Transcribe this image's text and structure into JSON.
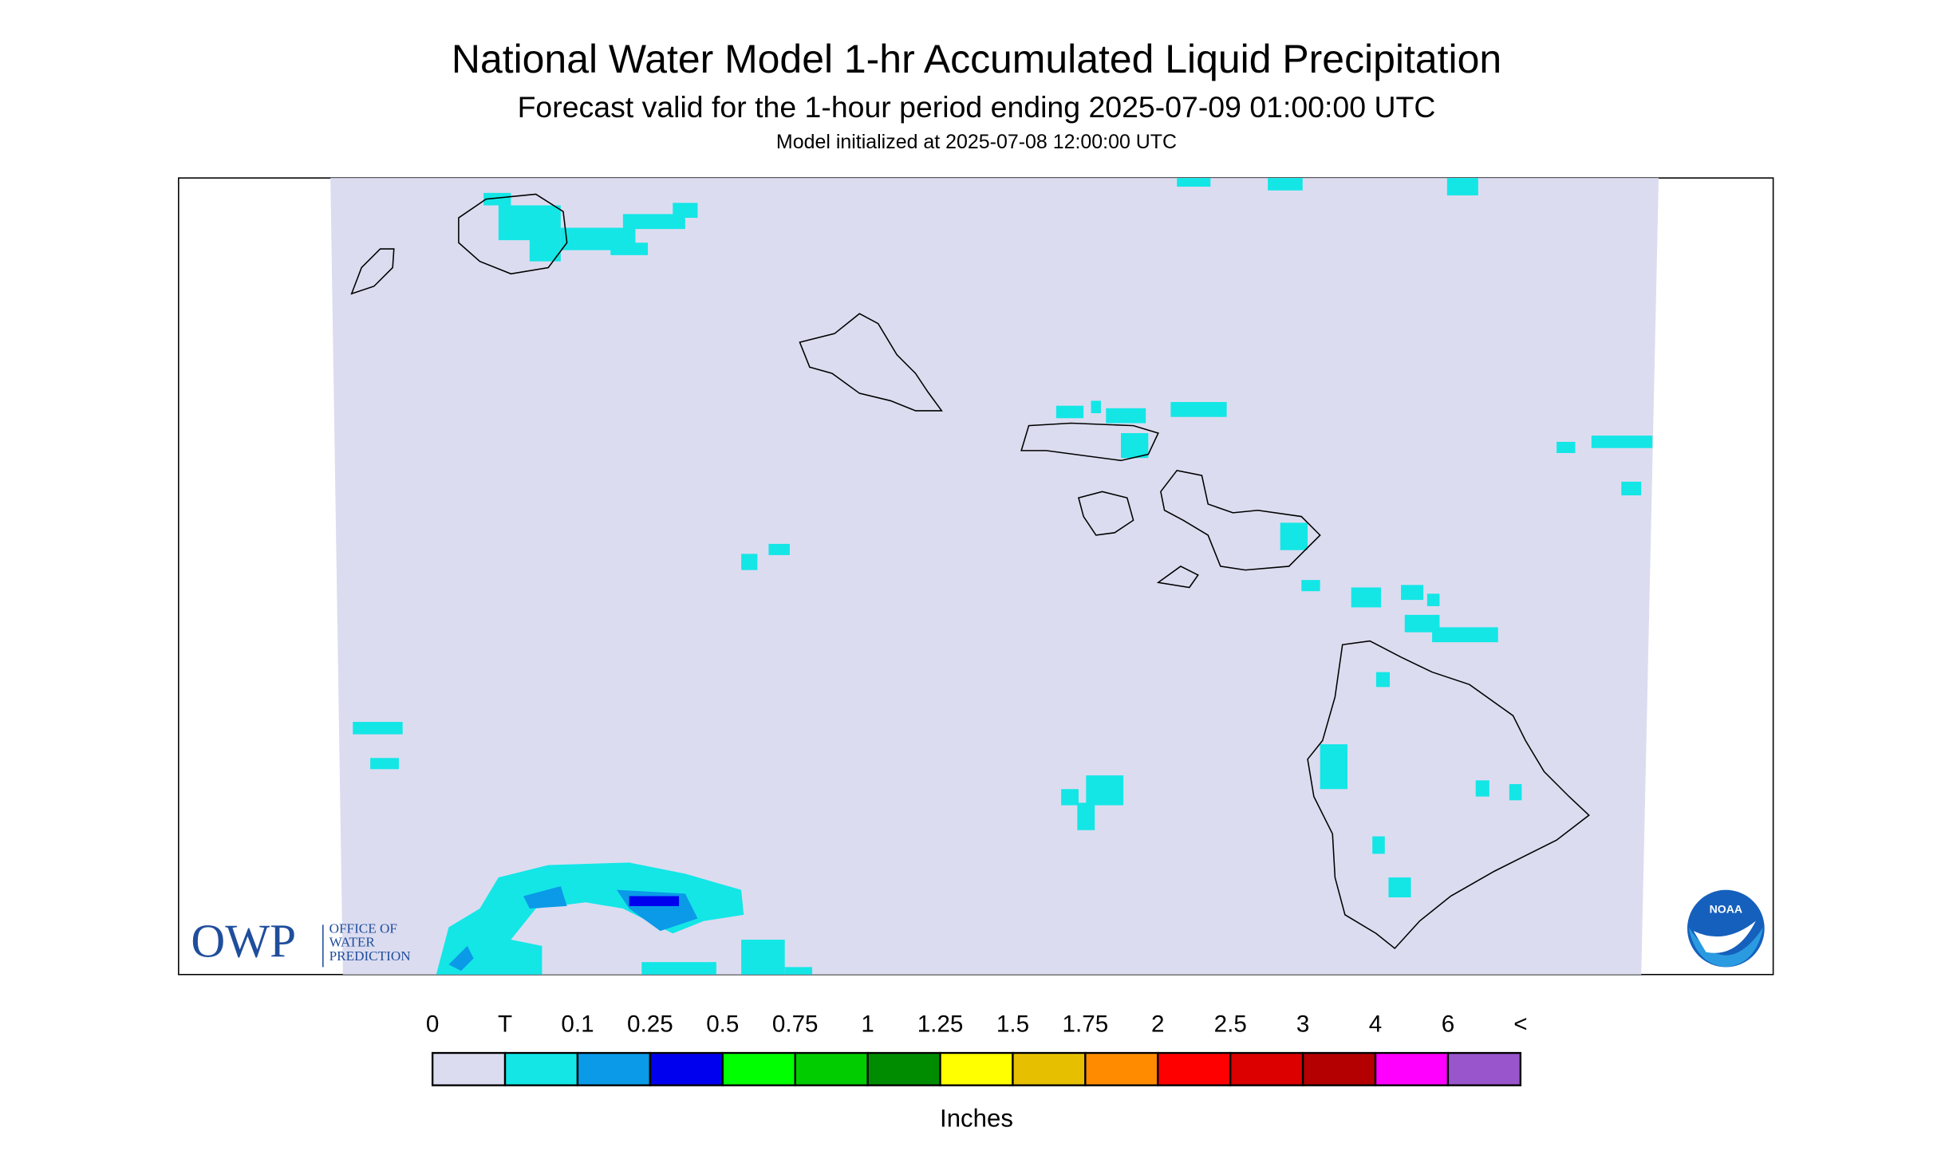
{
  "header": {
    "title": "National Water Model 1-hr Accumulated Liquid Precipitation",
    "subtitle": "Forecast valid for the 1-hour period ending 2025-07-09 01:00:00 UTC",
    "init": "Model initialized at 2025-07-08 12:00:00 UTC"
  },
  "legend": {
    "labels": [
      "0",
      "T",
      "0.1",
      "0.25",
      "0.5",
      "0.75",
      "1",
      "1.25",
      "1.5",
      "1.75",
      "2",
      "2.5",
      "3",
      "4",
      "6",
      "<"
    ],
    "colors": [
      "#dcdcf0",
      "#14e6e6",
      "#0a9ae8",
      "#0000ee",
      "#00ff00",
      "#00cc00",
      "#008c00",
      "#ffff00",
      "#e6c000",
      "#ff8c00",
      "#ff0000",
      "#dc0000",
      "#b40000",
      "#ff00ff",
      "#9955cc"
    ],
    "unit": "Inches"
  },
  "logos": {
    "owp": "OWP",
    "owp_lines": [
      "OFFICE OF",
      "WATER",
      "PREDICTION"
    ],
    "noaa": "NOAA"
  }
}
